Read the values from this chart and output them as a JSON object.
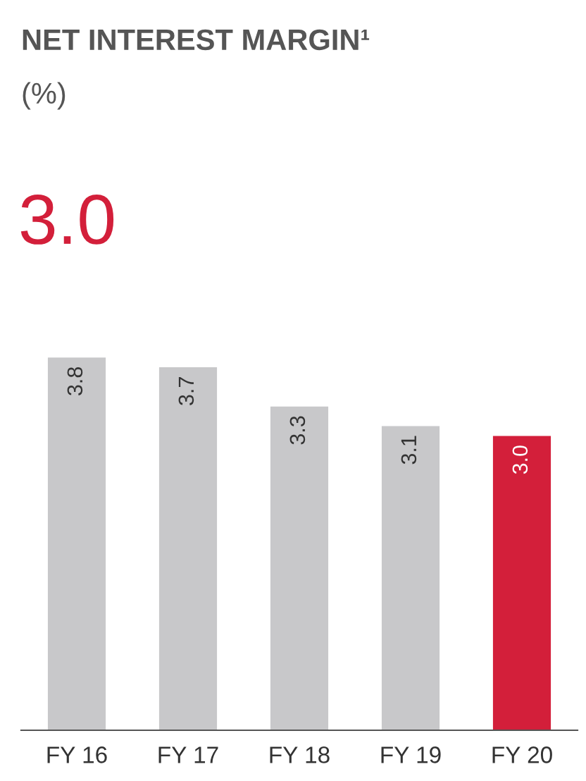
{
  "chart_data": {
    "type": "bar",
    "title": "NET INTEREST MARGIN¹",
    "subtitle": "(%)",
    "annotations": [
      "3.0"
    ],
    "categories": [
      "FY 16",
      "FY 17",
      "FY 18",
      "FY 19",
      "FY 20"
    ],
    "values": [
      3.8,
      3.7,
      3.3,
      3.1,
      3.0
    ],
    "colors": [
      "#c8c8ca",
      "#c8c8ca",
      "#c8c8ca",
      "#c8c8ca",
      "#d31f3a"
    ],
    "value_labels": [
      "3.8",
      "3.7",
      "3.3",
      "3.1",
      "3.0"
    ],
    "grid": false,
    "legend": false
  }
}
